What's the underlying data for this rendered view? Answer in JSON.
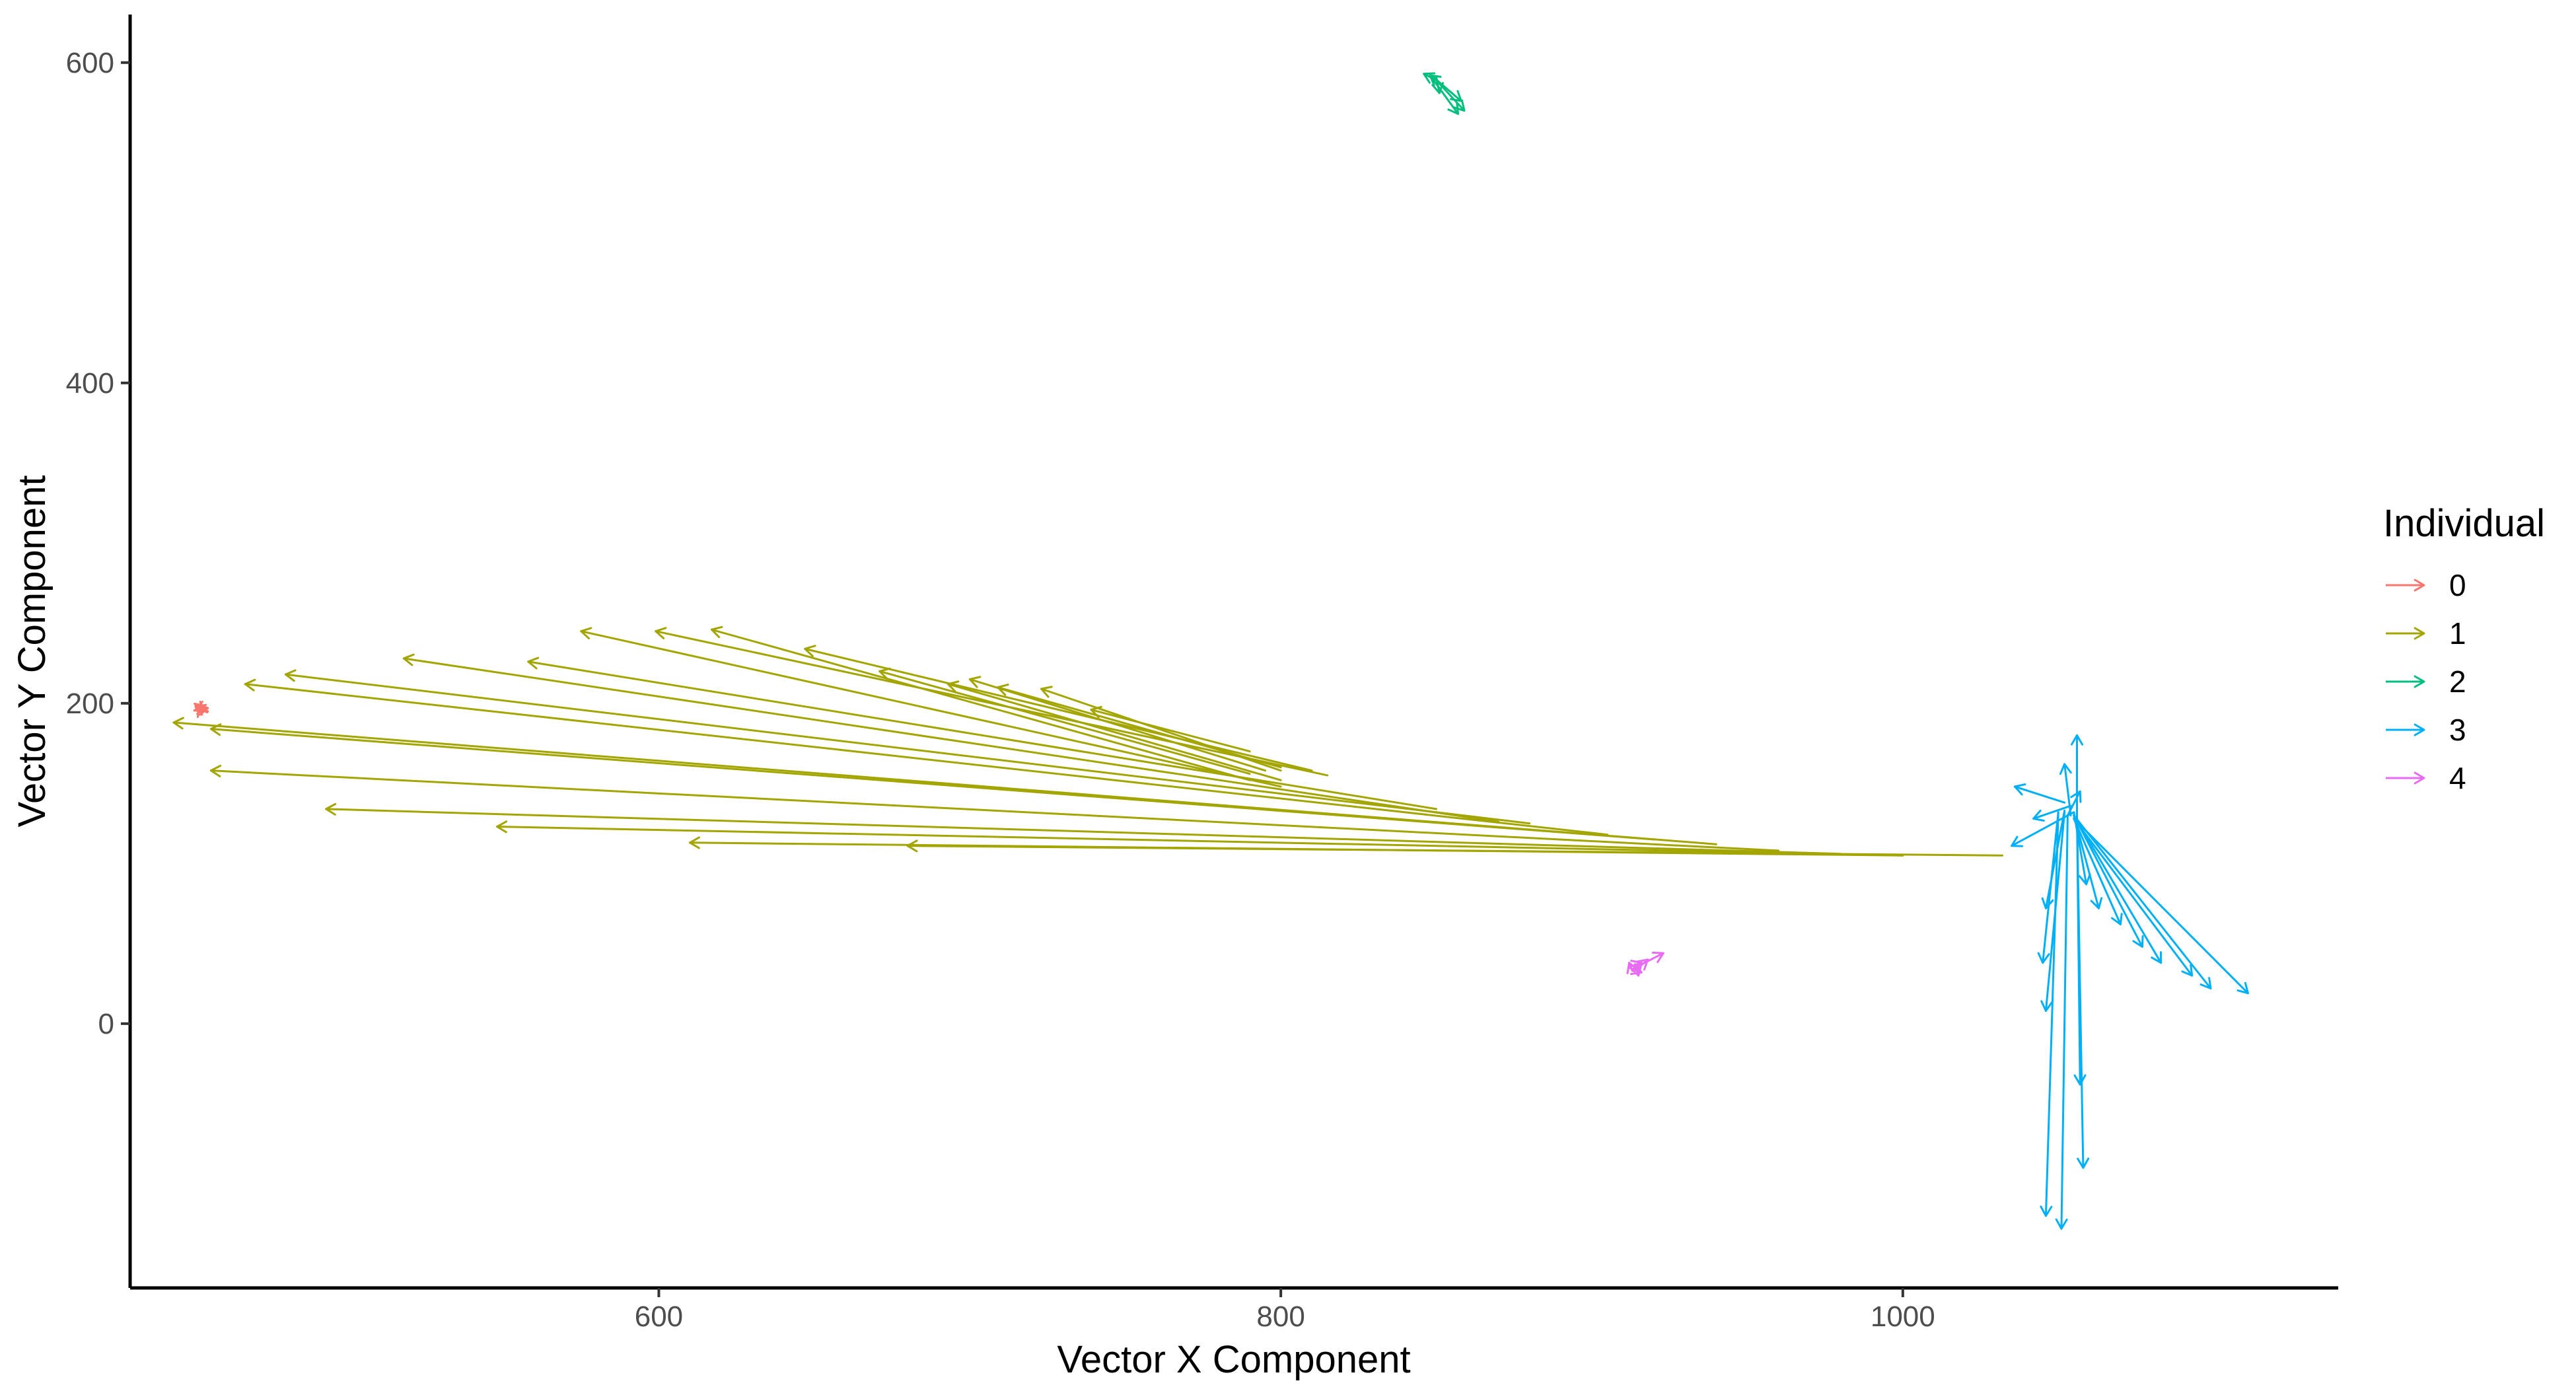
{
  "chart_data": {
    "type": "vector-field",
    "xlabel": "Vector X Component",
    "ylabel": "Vector Y Component",
    "xlim": [
      430,
      1140
    ],
    "ylim": [
      -165,
      630
    ],
    "x_ticks": [
      600,
      800,
      1000
    ],
    "y_ticks": [
      0,
      200,
      400,
      600
    ],
    "grid": false,
    "legend": {
      "title": "Individual",
      "placement": "right"
    },
    "series": [
      {
        "name": "0",
        "color": "#F8766D",
        "arrows": [
          [
            452,
            197,
            454,
            198
          ],
          [
            454,
            198,
            451,
            196
          ],
          [
            453,
            194,
            452,
            198
          ],
          [
            451,
            199,
            454,
            195
          ],
          [
            452,
            196,
            455,
            197
          ],
          [
            455,
            195,
            451,
            198
          ]
        ]
      },
      {
        "name": "1",
        "color": "#A3A500",
        "arrows": [
          [
            1032,
            105,
            680,
            111
          ],
          [
            1000,
            105,
            610,
            113
          ],
          [
            1000,
            105,
            548,
            123
          ],
          [
            980,
            106,
            493,
            134
          ],
          [
            960,
            108,
            456,
            158
          ],
          [
            940,
            112,
            444,
            188
          ],
          [
            920,
            115,
            456,
            184
          ],
          [
            905,
            118,
            467,
            212
          ],
          [
            880,
            125,
            480,
            218
          ],
          [
            870,
            126,
            518,
            228
          ],
          [
            850,
            134,
            558,
            226
          ],
          [
            800,
            148,
            575,
            245
          ],
          [
            815,
            155,
            599,
            245
          ],
          [
            790,
            152,
            617,
            246
          ],
          [
            810,
            158,
            647,
            234
          ],
          [
            790,
            156,
            671,
            220
          ],
          [
            800,
            152,
            693,
            212
          ],
          [
            795,
            158,
            700,
            215
          ],
          [
            800,
            160,
            709,
            210
          ],
          [
            800,
            158,
            723,
            209
          ],
          [
            790,
            170,
            739,
            196
          ]
        ]
      },
      {
        "name": "2",
        "color": "#00BF7D",
        "arrows": [
          [
            849,
            591,
            858,
            576
          ],
          [
            850,
            589,
            859,
            570
          ],
          [
            848,
            592,
            857,
            568
          ],
          [
            849,
            590,
            846,
            593
          ],
          [
            850,
            591,
            851,
            581
          ],
          [
            852,
            586,
            848,
            592
          ]
        ]
      },
      {
        "name": "3",
        "color": "#00B0F6",
        "arrows": [
          [
            1056,
            128,
            1056,
            180
          ],
          [
            1054,
            130,
            1052,
            162
          ],
          [
            1053,
            130,
            1057,
            145
          ],
          [
            1052,
            138,
            1036,
            148
          ],
          [
            1055,
            132,
            1035,
            111
          ],
          [
            1054,
            136,
            1042,
            128
          ],
          [
            1055,
            128,
            1111,
            19
          ],
          [
            1055,
            130,
            1099,
            22
          ],
          [
            1055,
            128,
            1093,
            30
          ],
          [
            1055,
            130,
            1083,
            38
          ],
          [
            1055,
            130,
            1077,
            48
          ],
          [
            1055,
            128,
            1070,
            62
          ],
          [
            1055,
            130,
            1063,
            72
          ],
          [
            1055,
            132,
            1059,
            87
          ],
          [
            1052,
            133,
            1046,
            72
          ],
          [
            1050,
            132,
            1045,
            38
          ],
          [
            1052,
            132,
            1046,
            8
          ],
          [
            1056,
            130,
            1057,
            -38
          ],
          [
            1056,
            130,
            1058,
            -90
          ],
          [
            1050,
            132,
            1046,
            -120
          ],
          [
            1053,
            130,
            1051,
            -128
          ]
        ]
      },
      {
        "name": "4",
        "color": "#E76BF3",
        "arrows": [
          [
            913,
            34,
            923,
            44
          ],
          [
            913,
            36,
            916,
            38
          ],
          [
            912,
            35,
            916,
            32
          ],
          [
            914,
            37,
            915,
            30
          ],
          [
            913,
            33,
            912,
            38
          ],
          [
            915,
            35,
            918,
            40
          ]
        ]
      }
    ]
  }
}
